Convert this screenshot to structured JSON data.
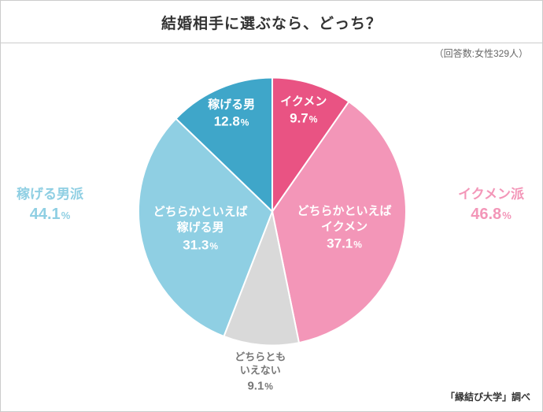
{
  "title": "結婚相手に選ぶなら、どっち？",
  "meta": "（回答数:女性329人）",
  "credit": "「縁結び大学」調べ",
  "chart": {
    "type": "pie",
    "radius": 170,
    "stroke": "#ffffff",
    "stroke_width": 2,
    "order_clockwise_from_top": [
      "ikumen",
      "rather_ikumen",
      "neutral",
      "rather_earner",
      "earner"
    ],
    "slices": {
      "ikumen": {
        "label": "イクメン",
        "value": 9.7,
        "color": "#e95383",
        "text_color": "#ffffff"
      },
      "rather_ikumen": {
        "label": "どちらかといえば\nイクメン",
        "value": 37.1,
        "color": "#f396b8",
        "text_color": "#ffffff"
      },
      "neutral": {
        "label": "どちらとも\nいえない",
        "value": 9.1,
        "color": "#d9d9d9",
        "text_color": "#777777"
      },
      "rather_earner": {
        "label": "どちらかといえば\n稼げる男",
        "value": 31.3,
        "color": "#8fcfe3",
        "text_color": "#ffffff"
      },
      "earner": {
        "label": "稼げる男",
        "value": 12.8,
        "color": "#3fa6c9",
        "text_color": "#ffffff"
      }
    },
    "groups": {
      "ikumen_side": {
        "label": "イクメン派",
        "value": 46.8,
        "color": "#f396b8",
        "position": "right"
      },
      "earner_side": {
        "label": "稼げる男派",
        "value": 44.1,
        "color": "#8fcfe3",
        "position": "left"
      }
    }
  }
}
